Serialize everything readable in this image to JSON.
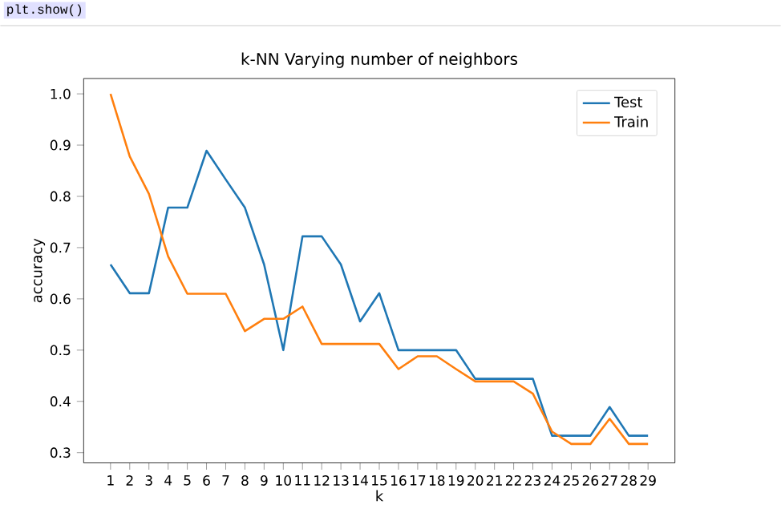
{
  "chart_data": {
    "type": "line",
    "title": "k-NN Varying number of neighbors",
    "xlabel": "k",
    "ylabel": "accuracy",
    "annotations": [
      "plt.show()"
    ],
    "x": [
      1,
      2,
      3,
      4,
      5,
      6,
      7,
      8,
      9,
      10,
      11,
      12,
      13,
      14,
      15,
      16,
      17,
      18,
      19,
      20,
      21,
      22,
      23,
      24,
      25,
      26,
      27,
      28,
      29
    ],
    "series": [
      {
        "name": "Test",
        "color": "#1f77b4",
        "values": [
          0.667,
          0.611,
          0.611,
          0.778,
          0.778,
          0.889,
          0.833,
          0.778,
          0.667,
          0.5,
          0.722,
          0.722,
          0.667,
          0.556,
          0.611,
          0.5,
          0.5,
          0.5,
          0.5,
          0.444,
          0.444,
          0.444,
          0.444,
          0.333,
          0.333,
          0.333,
          0.389,
          0.333,
          0.333
        ]
      },
      {
        "name": "Train",
        "color": "#ff7f0e",
        "values": [
          1.0,
          0.878,
          0.805,
          0.683,
          0.61,
          0.61,
          0.61,
          0.537,
          0.561,
          0.561,
          0.585,
          0.512,
          0.512,
          0.512,
          0.512,
          0.463,
          0.488,
          0.488,
          0.463,
          0.439,
          0.439,
          0.439,
          0.415,
          0.341,
          0.317,
          0.317,
          0.366,
          0.317,
          0.317
        ]
      }
    ],
    "xlim": [
      -0.4,
      30.4
    ],
    "ylim": [
      0.28,
      1.03
    ],
    "xticks": [
      1,
      2,
      3,
      4,
      5,
      6,
      7,
      8,
      9,
      10,
      11,
      12,
      13,
      14,
      15,
      16,
      17,
      18,
      19,
      20,
      21,
      22,
      23,
      24,
      25,
      26,
      27,
      28,
      29
    ],
    "yticks": [
      0.3,
      0.4,
      0.5,
      0.6,
      0.7,
      0.8,
      0.9,
      {
        "value": 1,
        "label": "1.0"
      }
    ],
    "legend": "top right",
    "grid": false,
    "marker": "none",
    "line_style": "solid"
  }
}
